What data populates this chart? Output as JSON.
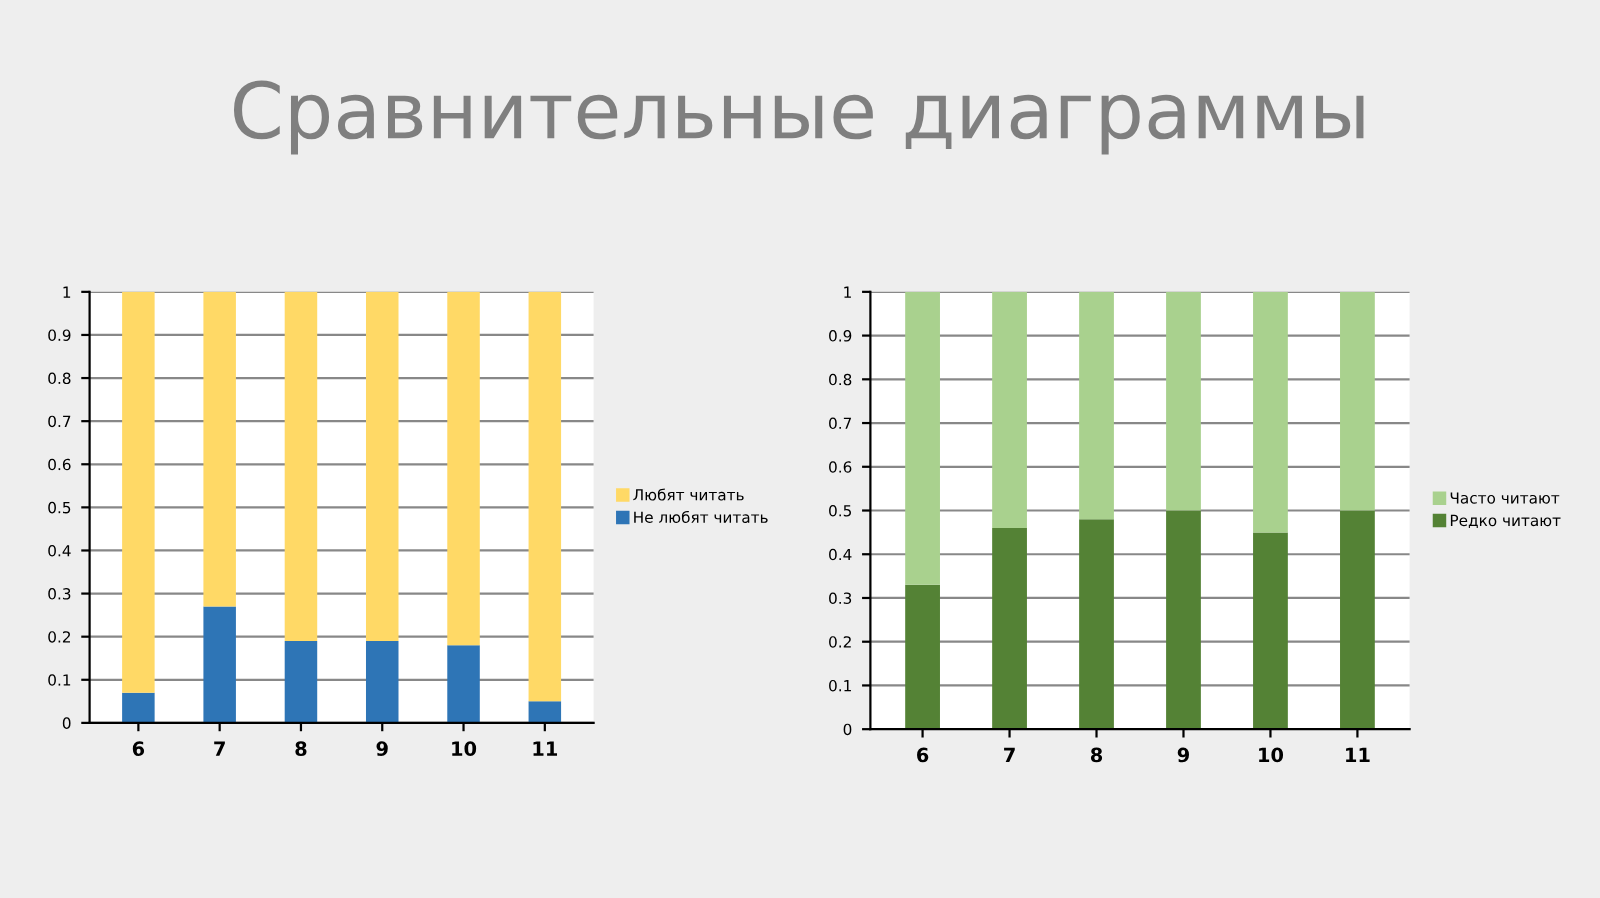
{
  "chart_data": [
    {
      "type": "bar",
      "title": "Сравнительные диаграммы",
      "stacked": true,
      "categories": [
        "6",
        "7",
        "8",
        "9",
        "10",
        "11"
      ],
      "ylim": [
        0,
        1
      ],
      "yticks": [
        0,
        0.1,
        0.2,
        0.3,
        0.4,
        0.5,
        0.6,
        0.7,
        0.8,
        0.9,
        1
      ],
      "grid": "y",
      "legend": "right",
      "series": [
        {
          "name": "Не любят читать",
          "color": "#2e75b6",
          "values": [
            0.07,
            0.27,
            0.19,
            0.19,
            0.18,
            0.05
          ]
        },
        {
          "name": "Любят читать",
          "color": "#ffd966",
          "values": [
            0.93,
            0.73,
            0.81,
            0.81,
            0.82,
            0.95
          ]
        }
      ]
    },
    {
      "type": "bar",
      "stacked": true,
      "categories": [
        "6",
        "7",
        "8",
        "9",
        "10",
        "11"
      ],
      "ylim": [
        0,
        1
      ],
      "yticks": [
        0,
        0.1,
        0.2,
        0.3,
        0.4,
        0.5,
        0.6,
        0.7,
        0.8,
        0.9,
        1
      ],
      "grid": "y",
      "legend": "right",
      "series": [
        {
          "name": "Редко читают",
          "color": "#548235",
          "values": [
            0.33,
            0.46,
            0.48,
            0.5,
            0.45,
            0.5
          ]
        },
        {
          "name": "Часто читают",
          "color": "#a9d18e",
          "values": [
            0.67,
            0.54,
            0.52,
            0.5,
            0.55,
            0.5
          ]
        }
      ]
    }
  ]
}
